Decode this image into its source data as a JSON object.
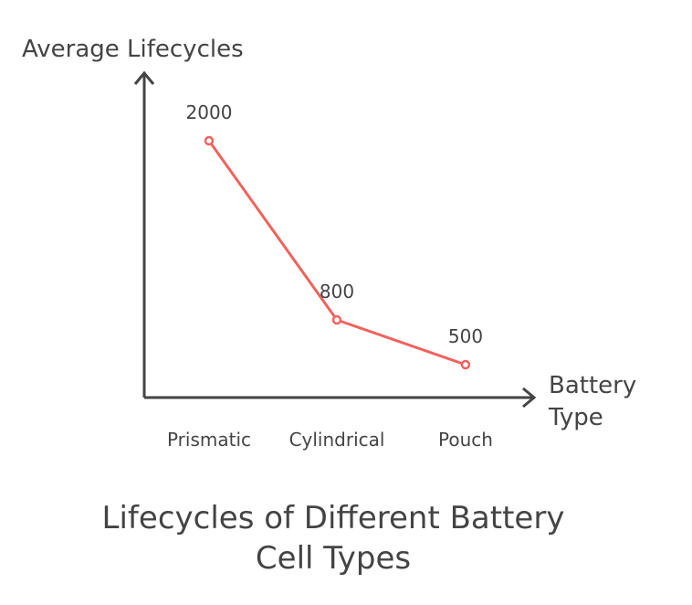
{
  "chart_data": {
    "type": "line",
    "title": "Lifecycles of Different Battery Cell Types",
    "title_lines": [
      "Lifecycles of Different Battery",
      "Cell Types"
    ],
    "xlabel_lines": [
      "Battery",
      "Type"
    ],
    "ylabel": "Average Lifecycles",
    "categories": [
      "Prismatic",
      "Cylindrical",
      "Pouch"
    ],
    "series": [
      {
        "values": [
          2000,
          800,
          500
        ],
        "data_labels": [
          "2000",
          "800",
          "500"
        ],
        "color": "#f0625d"
      }
    ],
    "grid": false,
    "legend": "none"
  },
  "colors": {
    "axis": "#444444",
    "line": "#f0625d",
    "text": "#444444"
  }
}
